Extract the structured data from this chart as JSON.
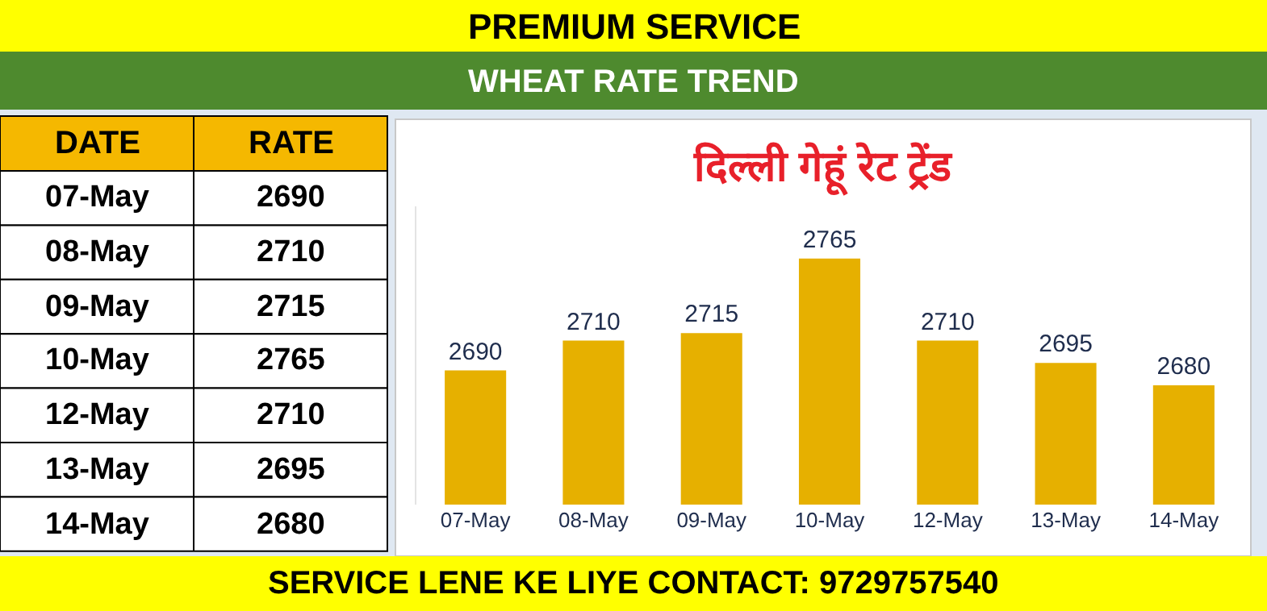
{
  "chart_data": [
    {
      "type": "other",
      "annotations": [
        "DATE",
        "RATE"
      ],
      "categories": [
        "07-May",
        "08-May",
        "09-May",
        "10-May",
        "12-May",
        "13-May",
        "14-May"
      ],
      "value_labels": [
        "2690",
        "2710",
        "2715",
        "2765",
        "2710",
        "2695",
        "2680"
      ]
    },
    {
      "type": "bar",
      "title": "PREMIUM SERVICE",
      "subtitle": "WHEAT RATE TREND",
      "xlabel": "दिल्ली गेहूं रेट ट्रेंड",
      "categories": [
        "07-May",
        "08-May",
        "09-May",
        "10-May",
        "12-May",
        "13-May",
        "14-May"
      ],
      "values": [
        2690,
        2710,
        2715,
        2765,
        2710,
        2695,
        2680
      ],
      "color": "#e6b000",
      "ylim": [
        2600,
        2800
      ],
      "data_labels": true,
      "legend": false,
      "annotations": [
        "SERVICE LENE KE LIYE CONTACT: 9729757540"
      ]
    }
  ]
}
